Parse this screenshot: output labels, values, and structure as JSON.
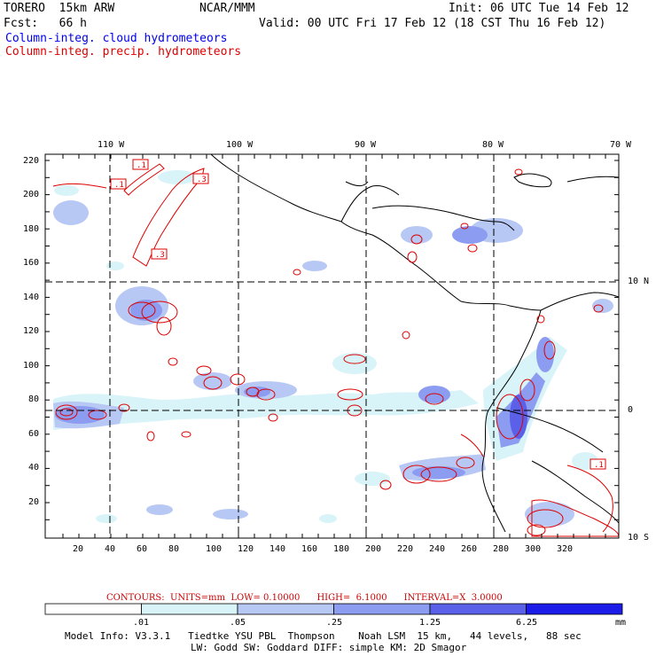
{
  "header": {
    "model": "TORERO  15km ARW",
    "center": "NCAR/MMM",
    "init": "Init: 06 UTC Tue 14 Feb 12",
    "fcst": "Fcst:   66 h",
    "valid": "Valid: 00 UTC Fri 17 Feb 12 (18 CST Thu 16 Feb 12)",
    "field_blue": "Column-integ. cloud hydrometeors",
    "field_red": "Column-integ. precip. hydrometeors"
  },
  "map": {
    "lon_top_labels": [
      "110 W",
      "100 W",
      "90 W",
      "80 W",
      "70 W"
    ],
    "lat_right_labels": [
      "10 N",
      "0",
      "10 S"
    ],
    "y_ticks": [
      "220",
      "200",
      "180",
      "160",
      "140",
      "120",
      "100",
      "80",
      "60",
      "40",
      "20"
    ],
    "x_ticks": [
      "20",
      "40",
      "60",
      "80",
      "100",
      "120",
      "140",
      "160",
      "180",
      "200",
      "220",
      "240",
      "260",
      "280",
      "300",
      "320"
    ],
    "contour_labels": [
      ".1",
      ".1",
      ".3",
      ".3",
      ".1"
    ],
    "colors": {
      "cloud_lightest": "#d8f4f8",
      "cloud_light": "#b8c8f4",
      "cloud_mid": "#8c9cf0",
      "cloud_strong": "#5a60e8",
      "precip_contour": "#dd0000",
      "coast": "#000000",
      "grid": "#000000"
    }
  },
  "contours_info": {
    "contours_text": "CONTOURS:  UNITS=mm  LOW= 0.10000      HIGH=  6.1000      INTERVAL=X  3.0000"
  },
  "colorbar": {
    "levels": [
      ".01",
      ".05",
      ".25",
      "1.25",
      "6.25"
    ],
    "units": "mm",
    "colors": [
      "#ffffff",
      "#d8f4f8",
      "#b8c8f4",
      "#8c9cf0",
      "#5a60e8",
      "#1c1ce8"
    ]
  },
  "footer": {
    "line1": "Model Info: V3.3.1   Tiedtke YSU PBL  Thompson    Noah LSM  15 km,   44 levels,   88 sec",
    "line2": "LW: Godd SW: Goddard DIFF: simple KM: 2D Smagor"
  }
}
